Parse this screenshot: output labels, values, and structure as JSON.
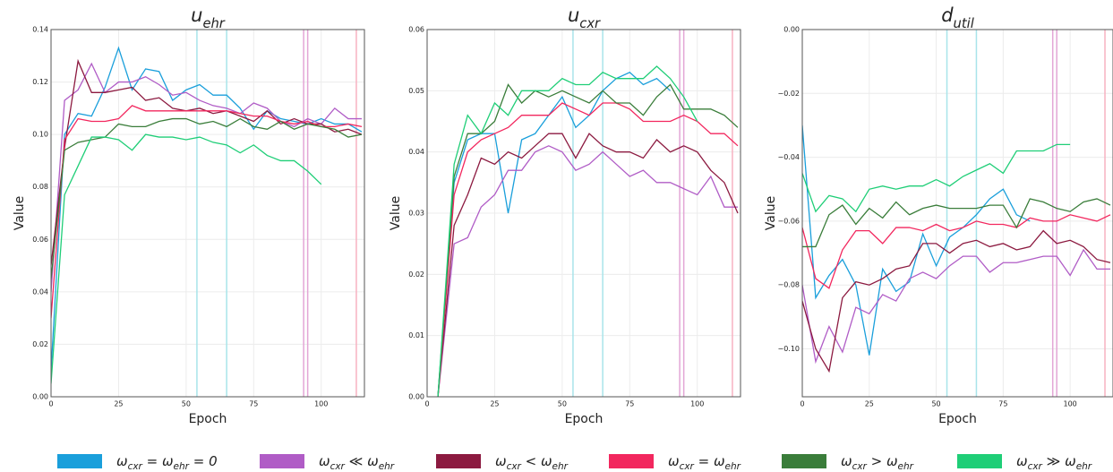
{
  "chart_data": [
    {
      "type": "line",
      "title": "uehr",
      "xlabel": "Epoch",
      "ylabel": "Value",
      "x": [
        0,
        5,
        10,
        15,
        20,
        25,
        30,
        35,
        40,
        45,
        50,
        55,
        60,
        65,
        70,
        75,
        80,
        85,
        90,
        95,
        100,
        105,
        110,
        115
      ],
      "xlim": [
        0,
        116
      ],
      "xticks": [
        0,
        25,
        50,
        75,
        100
      ],
      "ylim": [
        0,
        0.14
      ],
      "yticks": [
        {
          "value": 0,
          "label": "0.00"
        },
        {
          "value": 0.02,
          "label": "0.02"
        },
        {
          "value": 0.04,
          "label": "0.04"
        },
        {
          "value": 0.06,
          "label": "0.06"
        },
        {
          "value": 0.08,
          "label": "0.08"
        },
        {
          "value": 0.1,
          "label": "0.10"
        },
        {
          "value": 0.12,
          "label": "0.12"
        },
        {
          "value": 0.14,
          "label": "0.14"
        }
      ],
      "grid": true,
      "vlines": [
        {
          "x": 54,
          "color": "#a8e4ea"
        },
        {
          "x": 65,
          "color": "#a8e4ea"
        },
        {
          "x": 93.5,
          "color": "#e3a6d6"
        },
        {
          "x": 95,
          "color": "#e3a6d6"
        },
        {
          "x": 113,
          "color": "#f7b2c1"
        }
      ],
      "series": [
        {
          "name": "ωcxr = ωehr = 0",
          "color": "#1a9fdb",
          "values": [
            0.01,
            0.1,
            0.108,
            0.107,
            0.118,
            0.133,
            0.117,
            0.125,
            0.124,
            0.113,
            0.117,
            0.119,
            0.115,
            0.115,
            0.11,
            0.102,
            0.109,
            0.106,
            0.105,
            0.104,
            0.106,
            0.104,
            0.104,
            0.101
          ]
        },
        {
          "name": "ωcxr ≪ ωehr",
          "color": "#b05cc6",
          "values": [
            0.04,
            0.113,
            0.117,
            0.127,
            0.116,
            0.12,
            0.12,
            0.122,
            0.119,
            0.115,
            0.116,
            0.113,
            0.111,
            0.11,
            0.108,
            0.112,
            0.11,
            0.105,
            0.103,
            0.106,
            0.104,
            0.11,
            0.106,
            0.106
          ]
        },
        {
          "name": "ωcxr < ωehr",
          "color": "#8c1a40",
          "values": [
            0.05,
            0.095,
            0.128,
            0.116,
            0.116,
            0.117,
            0.118,
            0.113,
            0.114,
            0.11,
            0.109,
            0.11,
            0.108,
            0.109,
            0.107,
            0.105,
            0.109,
            0.104,
            0.106,
            0.104,
            0.104,
            0.101,
            0.102,
            0.1
          ]
        },
        {
          "name": "ωcxr = ωehr",
          "color": "#f2275e",
          "values": [
            0.03,
            0.098,
            0.106,
            0.105,
            0.105,
            0.106,
            0.111,
            0.109,
            0.109,
            0.109,
            0.109,
            0.109,
            0.109,
            0.109,
            0.108,
            0.107,
            0.107,
            0.105,
            0.104,
            0.105,
            0.103,
            0.103,
            0.104,
            0.103
          ]
        },
        {
          "name": "ωcxr > ωehr",
          "color": "#3a7d3a",
          "values": [
            0.045,
            0.094,
            0.097,
            0.098,
            0.099,
            0.104,
            0.103,
            0.103,
            0.105,
            0.106,
            0.106,
            0.104,
            0.105,
            0.103,
            0.106,
            0.103,
            0.102,
            0.105,
            0.102,
            0.104,
            0.103,
            0.102,
            0.099,
            0.1
          ]
        },
        {
          "name": "ωcxr ≫ ωehr",
          "color": "#1fce77",
          "values": [
            0.005,
            0.077,
            0.088,
            0.099,
            0.099,
            0.098,
            0.094,
            0.1,
            0.099,
            0.099,
            0.098,
            0.099,
            0.097,
            0.096,
            0.093,
            0.096,
            0.092,
            0.09,
            0.09,
            0.086,
            0.081,
            null,
            null,
            null
          ]
        }
      ]
    },
    {
      "type": "line",
      "title": "ucxr",
      "xlabel": "Epoch",
      "ylabel": "Value",
      "x": [
        4,
        10,
        15,
        20,
        25,
        30,
        35,
        40,
        45,
        50,
        55,
        60,
        65,
        70,
        75,
        80,
        85,
        90,
        95,
        100,
        105,
        110,
        115
      ],
      "xlim": [
        0,
        116
      ],
      "xticks": [
        0,
        25,
        50,
        75,
        100
      ],
      "ylim": [
        0,
        0.06
      ],
      "yticks": [
        {
          "value": 0,
          "label": "0.00"
        },
        {
          "value": 0.01,
          "label": "0.01"
        },
        {
          "value": 0.02,
          "label": "0.02"
        },
        {
          "value": 0.03,
          "label": "0.03"
        },
        {
          "value": 0.04,
          "label": "0.04"
        },
        {
          "value": 0.05,
          "label": "0.05"
        },
        {
          "value": 0.06,
          "label": "0.06"
        }
      ],
      "grid": true,
      "vlines": [
        {
          "x": 54,
          "color": "#a8e4ea"
        },
        {
          "x": 65,
          "color": "#a8e4ea"
        },
        {
          "x": 93.5,
          "color": "#e3a6d6"
        },
        {
          "x": 95,
          "color": "#e3a6d6"
        },
        {
          "x": 113,
          "color": "#f7b2c1"
        }
      ],
      "series": [
        {
          "color": "#1a9fdb",
          "values": [
            0,
            0.035,
            0.042,
            0.043,
            0.043,
            0.03,
            0.042,
            0.043,
            0.046,
            0.049,
            0.044,
            0.046,
            0.05,
            0.052,
            0.053,
            0.051,
            0.052,
            0.05,
            null,
            null,
            null,
            null,
            null
          ]
        },
        {
          "color": "#b05cc6",
          "values": [
            0,
            0.025,
            0.026,
            0.031,
            0.033,
            0.037,
            0.037,
            0.04,
            0.041,
            0.04,
            0.037,
            0.038,
            0.04,
            0.038,
            0.036,
            0.037,
            0.035,
            0.035,
            0.034,
            0.033,
            0.036,
            0.031,
            0.031
          ]
        },
        {
          "color": "#8c1a40",
          "values": [
            0,
            0.028,
            0.033,
            0.039,
            0.038,
            0.04,
            0.039,
            0.041,
            0.043,
            0.043,
            0.039,
            0.043,
            0.041,
            0.04,
            0.04,
            0.039,
            0.042,
            0.04,
            0.041,
            0.04,
            0.037,
            0.035,
            0.03
          ]
        },
        {
          "color": "#f2275e",
          "values": [
            0,
            0.033,
            0.04,
            0.042,
            0.043,
            0.044,
            0.046,
            0.046,
            0.046,
            0.048,
            0.047,
            0.046,
            0.048,
            0.048,
            0.047,
            0.045,
            0.045,
            0.045,
            0.046,
            0.045,
            0.043,
            0.043,
            0.041
          ]
        },
        {
          "color": "#3a7d3a",
          "values": [
            0,
            0.036,
            0.043,
            0.043,
            0.045,
            0.051,
            0.048,
            0.05,
            0.049,
            0.05,
            0.049,
            0.048,
            0.05,
            0.048,
            0.048,
            0.046,
            0.049,
            0.051,
            0.047,
            0.047,
            0.047,
            0.046,
            0.044
          ]
        },
        {
          "color": "#1fce77",
          "values": [
            0,
            0.038,
            0.046,
            0.043,
            0.048,
            0.046,
            0.05,
            0.05,
            0.05,
            0.052,
            0.051,
            0.051,
            0.053,
            0.052,
            0.052,
            0.052,
            0.054,
            0.052,
            0.049,
            0.045,
            null,
            null,
            null
          ]
        }
      ]
    },
    {
      "type": "line",
      "title": "dutil",
      "xlabel": "Epoch",
      "ylabel": "Value",
      "x": [
        0,
        5,
        10,
        15,
        20,
        25,
        30,
        35,
        40,
        45,
        50,
        55,
        60,
        65,
        70,
        75,
        80,
        85,
        90,
        95,
        100,
        105,
        110,
        115
      ],
      "xlim": [
        0,
        116
      ],
      "xticks": [
        0,
        25,
        50,
        75,
        100
      ],
      "ylim": [
        -0.115,
        0
      ],
      "yticks": [
        {
          "value": -0.1,
          "label": "−0.10"
        },
        {
          "value": -0.08,
          "label": "−0.08"
        },
        {
          "value": -0.06,
          "label": "−0.06"
        },
        {
          "value": -0.04,
          "label": "−0.04"
        },
        {
          "value": -0.02,
          "label": "−0.02"
        },
        {
          "value": 0,
          "label": "0.00"
        }
      ],
      "grid": true,
      "vlines": [
        {
          "x": 54,
          "color": "#a8e4ea"
        },
        {
          "x": 65,
          "color": "#a8e4ea"
        },
        {
          "x": 93.5,
          "color": "#e3a6d6"
        },
        {
          "x": 95,
          "color": "#e3a6d6"
        },
        {
          "x": 113,
          "color": "#f7b2c1"
        }
      ],
      "series": [
        {
          "color": "#1a9fdb",
          "values": [
            -0.03,
            -0.084,
            -0.077,
            -0.072,
            -0.08,
            -0.102,
            -0.075,
            -0.082,
            -0.079,
            -0.064,
            -0.074,
            -0.065,
            -0.062,
            -0.058,
            -0.053,
            -0.05,
            -0.058,
            -0.06,
            null,
            null,
            null,
            null,
            null,
            null
          ]
        },
        {
          "color": "#b05cc6",
          "values": [
            -0.08,
            -0.104,
            -0.093,
            -0.101,
            -0.087,
            -0.089,
            -0.083,
            -0.085,
            -0.078,
            -0.076,
            -0.078,
            -0.074,
            -0.071,
            -0.071,
            -0.076,
            -0.073,
            -0.073,
            -0.072,
            -0.071,
            -0.071,
            -0.077,
            -0.069,
            -0.075,
            -0.075
          ]
        },
        {
          "color": "#8c1a40",
          "values": [
            -0.085,
            -0.1,
            -0.107,
            -0.084,
            -0.079,
            -0.08,
            -0.078,
            -0.075,
            -0.074,
            -0.067,
            -0.067,
            -0.07,
            -0.067,
            -0.066,
            -0.068,
            -0.067,
            -0.069,
            -0.068,
            -0.063,
            -0.067,
            -0.066,
            -0.068,
            -0.072,
            -0.073
          ]
        },
        {
          "color": "#f2275e",
          "values": [
            -0.062,
            -0.078,
            -0.081,
            -0.069,
            -0.063,
            -0.063,
            -0.067,
            -0.062,
            -0.062,
            -0.063,
            -0.061,
            -0.063,
            -0.062,
            -0.06,
            -0.061,
            -0.061,
            -0.062,
            -0.059,
            -0.06,
            -0.06,
            -0.058,
            -0.059,
            -0.06,
            -0.058
          ]
        },
        {
          "color": "#3a7d3a",
          "values": [
            -0.068,
            -0.068,
            -0.058,
            -0.055,
            -0.061,
            -0.056,
            -0.059,
            -0.054,
            -0.058,
            -0.056,
            -0.055,
            -0.056,
            -0.056,
            -0.056,
            -0.055,
            -0.055,
            -0.062,
            -0.053,
            -0.054,
            -0.056,
            -0.057,
            -0.054,
            -0.053,
            -0.055
          ]
        },
        {
          "color": "#1fce77",
          "values": [
            -0.045,
            -0.057,
            -0.052,
            -0.053,
            -0.057,
            -0.05,
            -0.049,
            -0.05,
            -0.049,
            -0.049,
            -0.047,
            -0.049,
            -0.046,
            -0.044,
            -0.042,
            -0.045,
            -0.038,
            -0.038,
            -0.038,
            -0.036,
            -0.036,
            null,
            null,
            null
          ]
        }
      ]
    }
  ]
}
